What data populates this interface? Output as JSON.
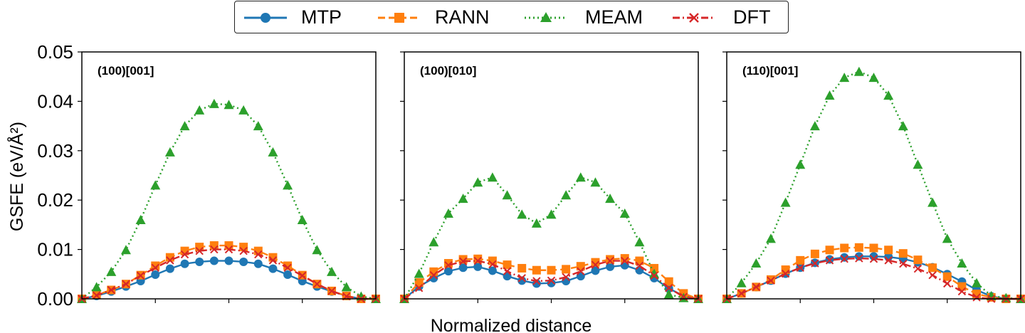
{
  "chart_data": {
    "type": "line",
    "xlabel": "Normalized distance",
    "ylabel": "GSFE (eV/Å²)",
    "ylim": [
      0,
      0.05
    ],
    "yticks": [
      "0.00",
      "0.01",
      "0.02",
      "0.03",
      "0.04",
      "0.05"
    ],
    "xlim": [
      0,
      1
    ],
    "x_tick_labels_shown": false,
    "legend": {
      "placement": "top-center",
      "entries": [
        {
          "name": "MTP",
          "color": "#1f77b4",
          "marker": "circle",
          "linestyle": "solid"
        },
        {
          "name": "RANN",
          "color": "#ff7f0e",
          "marker": "square",
          "linestyle": "dashed"
        },
        {
          "name": "MEAM",
          "color": "#2ca02c",
          "marker": "triangle",
          "linestyle": "dotted"
        },
        {
          "name": "DFT",
          "color": "#d62728",
          "marker": "x",
          "linestyle": "dashdot"
        }
      ]
    },
    "panels": [
      {
        "title": "(100)[001]",
        "x": [
          0,
          0.05,
          0.1,
          0.15,
          0.2,
          0.25,
          0.3,
          0.35,
          0.4,
          0.45,
          0.5,
          0.55,
          0.6,
          0.65,
          0.7,
          0.75,
          0.8,
          0.85,
          0.9,
          0.95,
          1.0
        ],
        "series": [
          {
            "name": "MTP",
            "values": [
              0.0,
              0.0006,
              0.0015,
              0.0025,
              0.0036,
              0.0049,
              0.0061,
              0.0071,
              0.0075,
              0.0077,
              0.0077,
              0.0075,
              0.0071,
              0.0061,
              0.0049,
              0.0036,
              0.0025,
              0.0015,
              0.0006,
              0.0,
              0.0
            ]
          },
          {
            "name": "RANN",
            "values": [
              0.0,
              0.0008,
              0.0018,
              0.003,
              0.0048,
              0.0067,
              0.0084,
              0.0097,
              0.0105,
              0.0108,
              0.0108,
              0.0105,
              0.0097,
              0.0084,
              0.0067,
              0.0048,
              0.003,
              0.0016,
              0.0006,
              0.0,
              0.0
            ]
          },
          {
            "name": "MEAM",
            "values": [
              0.0,
              0.0024,
              0.0055,
              0.0099,
              0.016,
              0.023,
              0.0297,
              0.035,
              0.0382,
              0.0395,
              0.0393,
              0.0382,
              0.035,
              0.0297,
              0.023,
              0.016,
              0.0099,
              0.0055,
              0.0024,
              0.0005,
              0.0
            ]
          },
          {
            "name": "DFT",
            "values": [
              0.0,
              0.0007,
              0.0018,
              0.003,
              0.0047,
              0.0063,
              0.0078,
              0.009,
              0.0097,
              0.01,
              0.01,
              0.0097,
              0.009,
              0.0078,
              0.0063,
              0.0047,
              0.003,
              0.0016,
              0.0005,
              0.0,
              0.0
            ]
          }
        ]
      },
      {
        "title": "(100)[010]",
        "x": [
          0,
          0.05,
          0.1,
          0.15,
          0.2,
          0.25,
          0.3,
          0.35,
          0.4,
          0.45,
          0.5,
          0.55,
          0.6,
          0.65,
          0.7,
          0.75,
          0.8,
          0.85,
          0.9,
          0.95,
          1.0
        ],
        "series": [
          {
            "name": "MTP",
            "values": [
              0.0,
              0.0025,
              0.0042,
              0.0056,
              0.0063,
              0.0065,
              0.0057,
              0.0046,
              0.0037,
              0.0031,
              0.0032,
              0.0036,
              0.0046,
              0.0057,
              0.0065,
              0.0068,
              0.0058,
              0.0042,
              0.0021,
              0.0006,
              0.0
            ]
          },
          {
            "name": "RANN",
            "values": [
              0.0,
              0.0033,
              0.0055,
              0.0072,
              0.008,
              0.0081,
              0.0077,
              0.0069,
              0.0062,
              0.0058,
              0.0058,
              0.006,
              0.0066,
              0.0074,
              0.008,
              0.0082,
              0.0077,
              0.0062,
              0.0035,
              0.0011,
              0.0
            ]
          },
          {
            "name": "MEAM",
            "values": [
              0.0,
              0.0051,
              0.0115,
              0.0173,
              0.0203,
              0.0236,
              0.0246,
              0.021,
              0.0171,
              0.0153,
              0.0171,
              0.021,
              0.0246,
              0.0236,
              0.0203,
              0.0173,
              0.0115,
              0.0051,
              0.0009,
              0.0002,
              0.0
            ]
          },
          {
            "name": "DFT",
            "values": [
              0.0,
              0.0022,
              0.0048,
              0.0068,
              0.0076,
              0.0077,
              0.007,
              0.0056,
              0.0042,
              0.0036,
              0.0037,
              0.0044,
              0.0056,
              0.0069,
              0.0077,
              0.0077,
              0.0067,
              0.0047,
              0.0022,
              0.0004,
              0.0
            ]
          }
        ]
      },
      {
        "title": "(110)[001]",
        "x": [
          0,
          0.05,
          0.1,
          0.15,
          0.2,
          0.25,
          0.3,
          0.35,
          0.4,
          0.45,
          0.5,
          0.55,
          0.6,
          0.65,
          0.7,
          0.75,
          0.8,
          0.85,
          0.9,
          0.95,
          1.0
        ],
        "series": [
          {
            "name": "MTP",
            "values": [
              0.0,
              0.0011,
              0.0024,
              0.0037,
              0.0051,
              0.0063,
              0.0073,
              0.008,
              0.0084,
              0.0086,
              0.0086,
              0.0085,
              0.0081,
              0.0074,
              0.0064,
              0.005,
              0.0035,
              0.0018,
              0.0005,
              0.0,
              0.0
            ]
          },
          {
            "name": "RANN",
            "values": [
              0.0,
              0.0011,
              0.0024,
              0.0039,
              0.0059,
              0.0078,
              0.0091,
              0.0099,
              0.0103,
              0.0104,
              0.0103,
              0.0099,
              0.0092,
              0.0079,
              0.0063,
              0.0045,
              0.0025,
              0.001,
              0.0003,
              0.0,
              0.0
            ]
          },
          {
            "name": "MEAM",
            "values": [
              0.0,
              0.0032,
              0.0072,
              0.0122,
              0.0195,
              0.0272,
              0.035,
              0.0412,
              0.0448,
              0.046,
              0.0448,
              0.0412,
              0.035,
              0.0272,
              0.0195,
              0.0122,
              0.0072,
              0.0032,
              0.0006,
              0.0002,
              0.0
            ]
          },
          {
            "name": "DFT",
            "values": [
              0.0,
              0.0011,
              0.0024,
              0.0037,
              0.0051,
              0.0063,
              0.0072,
              0.0078,
              0.0081,
              0.0082,
              0.0081,
              0.0078,
              0.0071,
              0.0061,
              0.0048,
              0.0031,
              0.0015,
              0.0003,
              0.0,
              0.0,
              0.0
            ]
          }
        ]
      }
    ]
  }
}
